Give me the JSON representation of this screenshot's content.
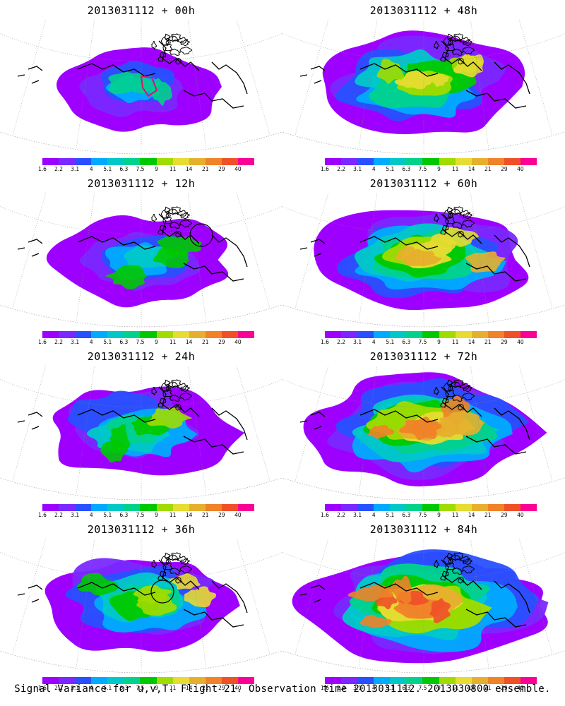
{
  "colorbar": {
    "colors": [
      "#9e00ff",
      "#7a28ff",
      "#2850ff",
      "#00aaff",
      "#00c8c8",
      "#00d28c",
      "#00c800",
      "#a0dc00",
      "#e6dc32",
      "#e6af2d",
      "#f08228",
      "#f05028",
      "#fa0096"
    ],
    "ticks": [
      "1.6",
      "2.2",
      "3.1",
      "4",
      "5.1",
      "6.3",
      "7.5",
      "9",
      "11",
      "14",
      "21",
      "29",
      "40"
    ]
  },
  "panels": [
    {
      "title": "2013031112 + 00h",
      "lead": 0,
      "circle": false,
      "polygon": true
    },
    {
      "title": "2013031112 + 48h",
      "lead": 48,
      "circle": false,
      "polygon": false
    },
    {
      "title": "2013031112 + 12h",
      "lead": 12,
      "circle": true,
      "polygon": false
    },
    {
      "title": "2013031112 + 60h",
      "lead": 60,
      "circle": false,
      "polygon": false
    },
    {
      "title": "2013031112 + 24h",
      "lead": 24,
      "circle": false,
      "polygon": false
    },
    {
      "title": "2013031112 + 72h",
      "lead": 72,
      "circle": false,
      "polygon": false
    },
    {
      "title": "2013031112 + 36h",
      "lead": 36,
      "circle": true,
      "polygon": false
    },
    {
      "title": "2013031112 + 84h",
      "lead": 84,
      "circle": false,
      "polygon": false
    }
  ],
  "footer": "Signal Variance for u,v,T. Flight 21. Observation time 2013031112. 2013030800 ensemble."
}
